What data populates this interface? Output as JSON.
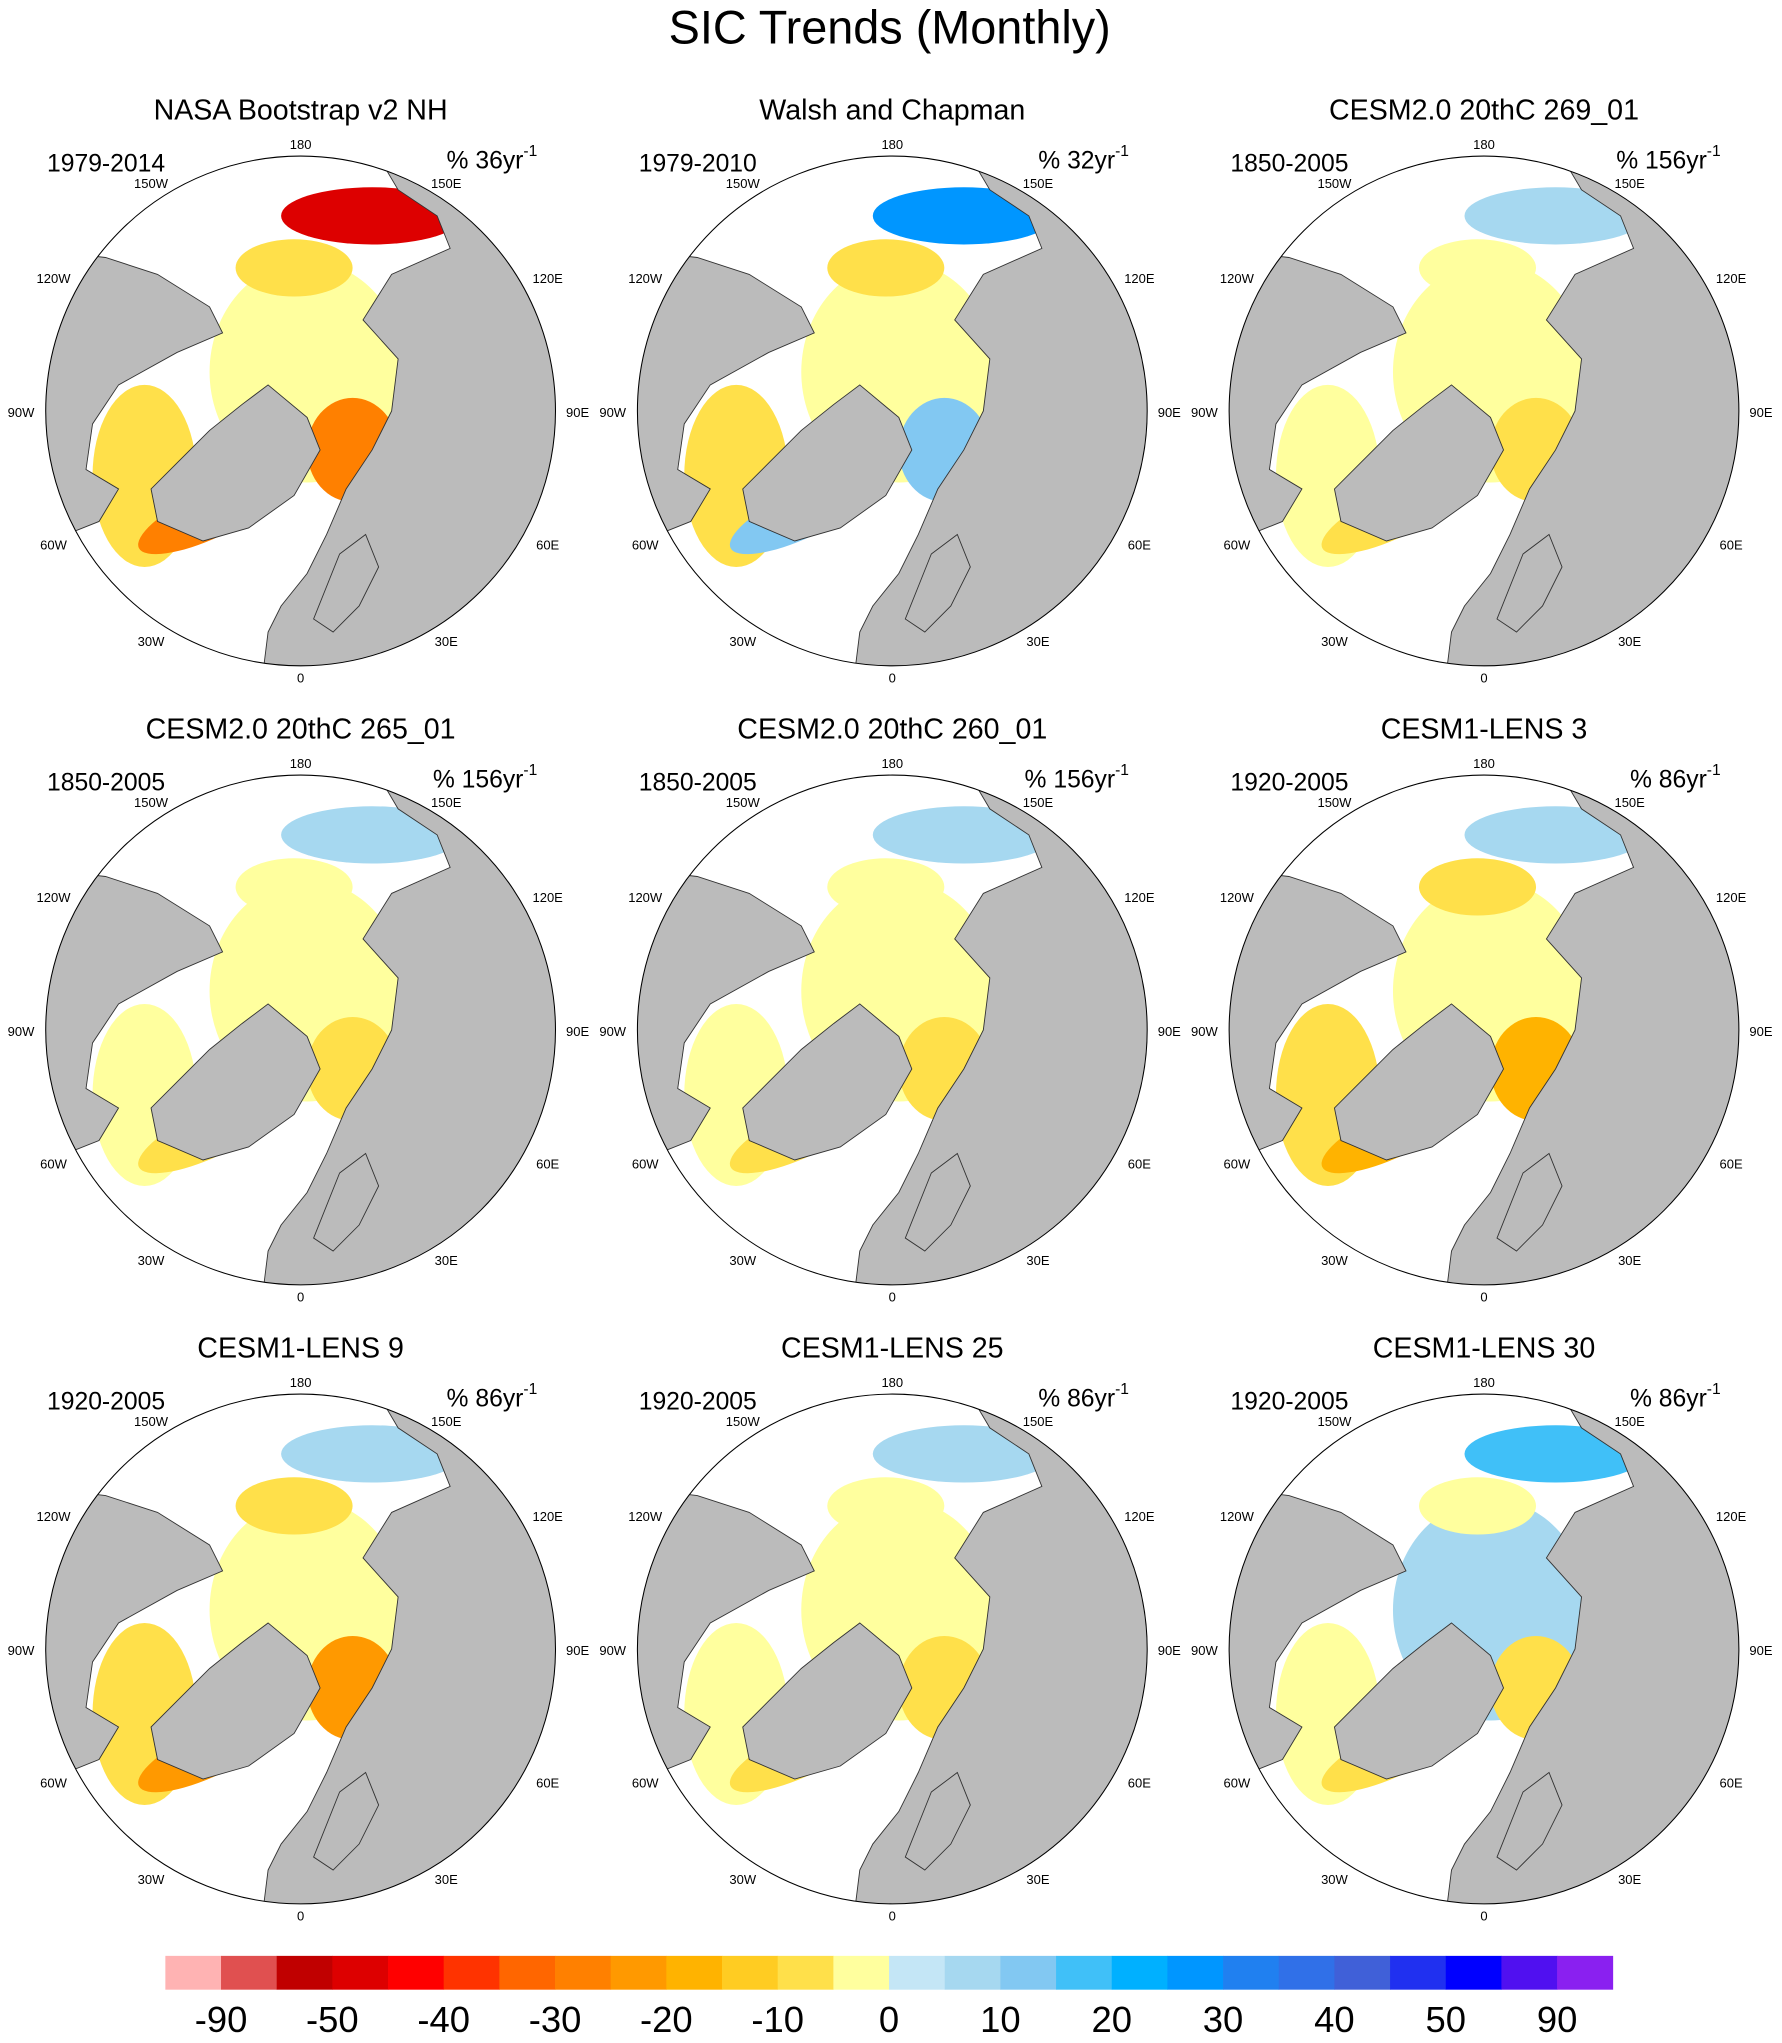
{
  "title": "SIC Trends (Monthly)",
  "lon_labels": [
    "180",
    "150W",
    "150E",
    "120W",
    "120E",
    "90W",
    "90E",
    "60W",
    "60E",
    "30W",
    "30E",
    "0"
  ],
  "panels": [
    {
      "title": "NASA Bootstrap v2 NH",
      "period": "1979-2014",
      "trend": "% 36yr",
      "trend_exponent": "-1"
    },
    {
      "title": "Walsh and Chapman",
      "period": "1979-2010",
      "trend": "% 32yr",
      "trend_exponent": "-1"
    },
    {
      "title": "CESM2.0 20thC 269_01",
      "period": "1850-2005",
      "trend": "% 156yr",
      "trend_exponent": "-1"
    },
    {
      "title": "CESM2.0 20thC 265_01",
      "period": "1850-2005",
      "trend": "% 156yr",
      "trend_exponent": "-1"
    },
    {
      "title": "CESM2.0 20thC 260_01",
      "period": "1850-2005",
      "trend": "% 156yr",
      "trend_exponent": "-1"
    },
    {
      "title": "CESM1-LENS 3",
      "period": "1920-2005",
      "trend": "% 86yr",
      "trend_exponent": "-1"
    },
    {
      "title": "CESM1-LENS 9",
      "period": "1920-2005",
      "trend": "% 86yr",
      "trend_exponent": "-1"
    },
    {
      "title": "CESM1-LENS 25",
      "period": "1920-2005",
      "trend": "% 86yr",
      "trend_exponent": "-1"
    },
    {
      "title": "CESM1-LENS 30",
      "period": "1920-2005",
      "trend": "% 86yr",
      "trend_exponent": "-1"
    }
  ],
  "colorbar": {
    "ticks": [
      -90,
      -50,
      -40,
      -30,
      -20,
      -10,
      0,
      10,
      20,
      30,
      40,
      50,
      90
    ],
    "colors": [
      "#ffb3b3",
      "#e05050",
      "#c00000",
      "#dd0000",
      "#ff0000",
      "#ff3300",
      "#ff6600",
      "#ff8000",
      "#ff9900",
      "#ffb300",
      "#ffcc22",
      "#ffe04a",
      "#ffff9e",
      "#c4e6f6",
      "#a6d8f0",
      "#82c8f2",
      "#40c0f8",
      "#00b0ff",
      "#0096ff",
      "#2080f0",
      "#3070e8",
      "#4060d8",
      "#2030f0",
      "#0000ff",
      "#5010f0",
      "#8a20f0"
    ]
  }
}
